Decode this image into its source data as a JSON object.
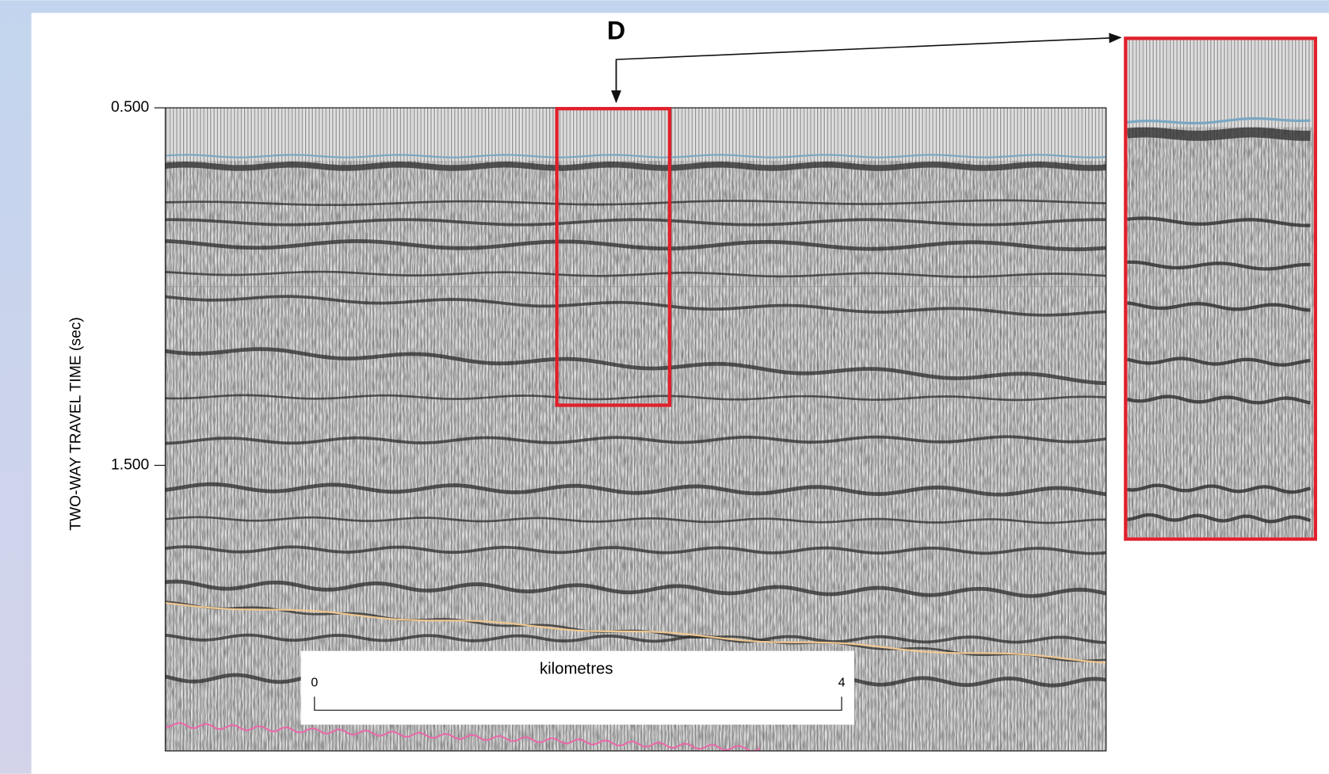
{
  "figure": {
    "label": "D",
    "y_axis": {
      "title": "TWO-WAY TRAVEL TIME (sec)",
      "ticks": [
        "0.500",
        "1.500"
      ]
    },
    "scale_bar": {
      "title": "kilometres",
      "start": "0",
      "end": "4"
    }
  }
}
